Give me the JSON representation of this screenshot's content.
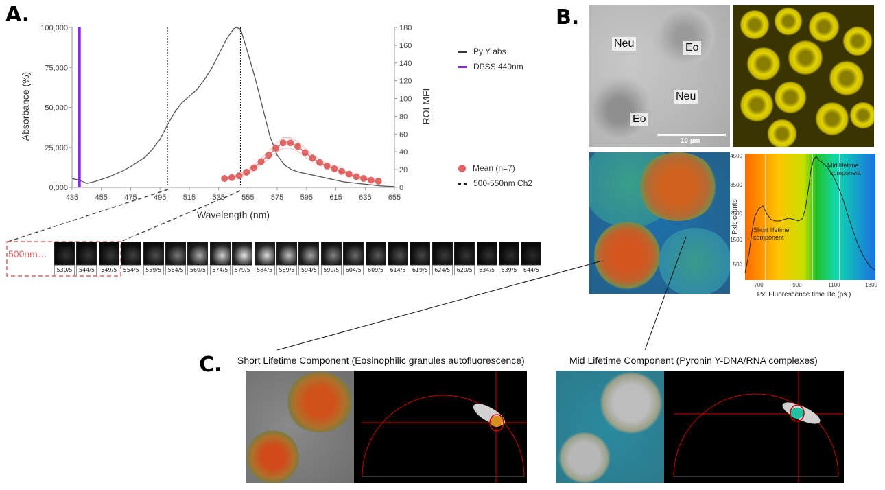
{
  "panels": {
    "a": "A.",
    "b": "B.",
    "c": "C."
  },
  "chart_data": {
    "type": "line",
    "xlabel": "Wavelength (nm)",
    "ylabel": "Absorbance (%)",
    "y2label": "ROI MFI",
    "xlim": [
      435,
      655
    ],
    "ylim": [
      0,
      100000
    ],
    "y2lim": [
      0,
      180
    ],
    "xticks": [
      "435",
      "455",
      "475",
      "495",
      "515",
      "535",
      "555",
      "575",
      "595",
      "615",
      "635",
      "655"
    ],
    "yticks": [
      "0,000",
      "25,000",
      "50,000",
      "75,000",
      "100,000"
    ],
    "y2ticks": [
      "0",
      "20",
      "40",
      "60",
      "80",
      "100",
      "120",
      "140",
      "160",
      "180"
    ],
    "legend_position": "right",
    "series": [
      {
        "name": "Py Y abs",
        "color": "#555555",
        "x": [
          435,
          440,
          445,
          450,
          455,
          460,
          465,
          470,
          475,
          480,
          485,
          490,
          495,
          500,
          505,
          510,
          515,
          520,
          525,
          530,
          535,
          540,
          545,
          547,
          550,
          555,
          560,
          565,
          570,
          575,
          580,
          585,
          590,
          595,
          600,
          605,
          610,
          615,
          620,
          625,
          630,
          635,
          640,
          645,
          650,
          655
        ],
        "y": [
          5500,
          4500,
          2500,
          3500,
          5000,
          6500,
          8500,
          10500,
          13000,
          16000,
          19000,
          24000,
          30000,
          39000,
          47000,
          53000,
          57000,
          61000,
          67000,
          74000,
          83000,
          92000,
          99000,
          100000,
          99000,
          84000,
          68000,
          50000,
          32000,
          20000,
          14000,
          11000,
          9500,
          8500,
          7500,
          6500,
          5500,
          4500,
          3500,
          3000,
          2500,
          2000,
          1500,
          1000,
          700,
          500
        ]
      },
      {
        "name": "DPSS 440nm",
        "color": "#8a2be2",
        "x": [
          440,
          440
        ],
        "y": [
          0,
          100000
        ]
      },
      {
        "name": "Mean (n=7)",
        "color": "#e06666",
        "axis": "y2",
        "x": [
          539,
          544,
          549,
          554,
          559,
          564,
          569,
          574,
          579,
          584,
          589,
          594,
          599,
          604,
          609,
          614,
          619,
          624,
          629,
          634,
          639,
          644
        ],
        "y": [
          10,
          11,
          13,
          17,
          22,
          29,
          36,
          44,
          50,
          50,
          46,
          39,
          33,
          28,
          24,
          21,
          18,
          15,
          12,
          10,
          8,
          7
        ]
      },
      {
        "name": "500-550nm Ch2",
        "color": "#222222",
        "style": "dotted",
        "x": [
          500,
          550
        ]
      }
    ]
  },
  "filter_strip": {
    "label": "500nm…",
    "cells": [
      "539/5",
      "544/5",
      "549/5",
      "554/5",
      "559/5",
      "564/5",
      "569/5",
      "574/5",
      "579/5",
      "584/5",
      "589/5",
      "594/5",
      "599/5",
      "604/5",
      "609/5",
      "614/5",
      "619/5",
      "624/5",
      "629/5",
      "634/5",
      "639/5",
      "644/5"
    ],
    "brightness": [
      0.1,
      0.12,
      0.14,
      0.18,
      0.25,
      0.45,
      0.7,
      0.9,
      1.0,
      0.95,
      0.8,
      0.65,
      0.5,
      0.38,
      0.3,
      0.25,
      0.2,
      0.15,
      0.12,
      0.1,
      0.08,
      0.06
    ]
  },
  "panel_b": {
    "labels": {
      "neu1": "Neu",
      "eo1": "Eo",
      "neu2": "Neu",
      "eo2": "Eo"
    },
    "scale_bar": "10 µm",
    "histogram": {
      "xlabel": "Pxl Fluorescence time life (ps )",
      "ylabel": "Pxls counts",
      "xticks": [
        "700",
        "900",
        "1100",
        "1300"
      ],
      "yticks": [
        "4500",
        "3500",
        "2500",
        "1500",
        "500"
      ],
      "annotations": {
        "short1": "Short lifetime",
        "short2": "component",
        "mid1": "Mid lifetime",
        "mid2": "component"
      }
    }
  },
  "panel_c": {
    "left_title": "Short Lifetime Component (Eosinophilic granules autofluorescence)",
    "right_title": "Mid Lifetime Component (Pyronin Y-DNA/RNA complexes)"
  },
  "colors": {
    "accent_red": "#e06666",
    "purple": "#8a2be2",
    "yellow": "#d4c200"
  }
}
